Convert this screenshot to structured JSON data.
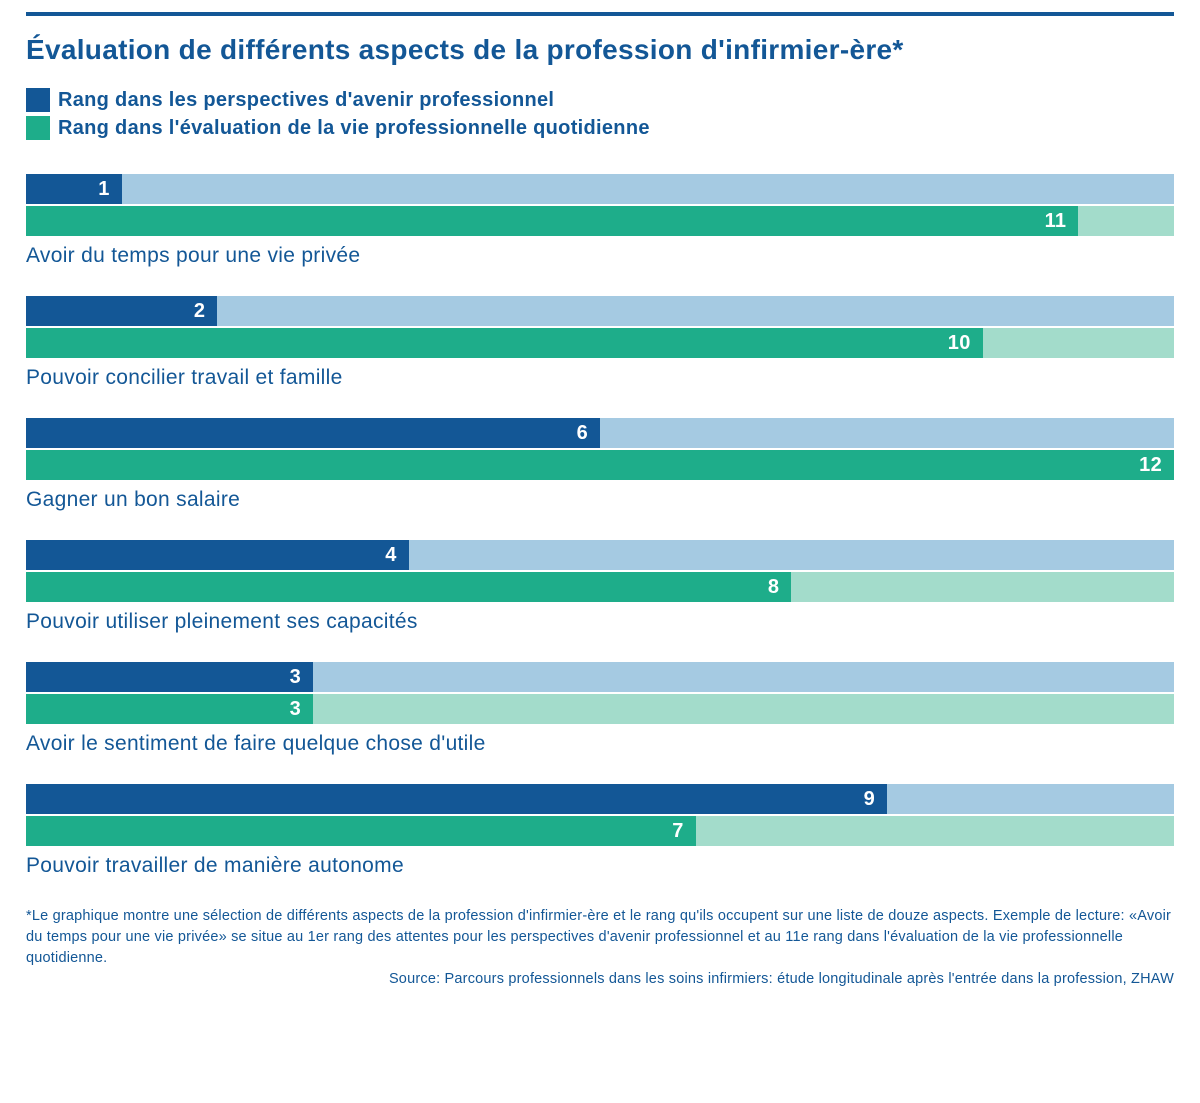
{
  "title": "Évaluation de différents aspects de la profession d'infirmier-ère*",
  "colors": {
    "series1_dark": "#135796",
    "series1_light": "#a5cae2",
    "series2_dark": "#1ead8a",
    "series2_light": "#a3dccb",
    "text": "#135796",
    "rule": "#135796",
    "background": "#ffffff"
  },
  "legend": {
    "series1": "Rang dans les perspectives d'avenir professionnel",
    "series2": "Rang dans l'évaluation de la vie professionnelle quotidienne"
  },
  "max_rank": 12,
  "items": [
    {
      "label": "Avoir du temps pour une vie privée",
      "rank1": 1,
      "rank2": 11
    },
    {
      "label": "Pouvoir concilier travail et famille",
      "rank1": 2,
      "rank2": 10
    },
    {
      "label": "Gagner un bon salaire",
      "rank1": 6,
      "rank2": 12
    },
    {
      "label": "Pouvoir utiliser pleinement ses capacités",
      "rank1": 4,
      "rank2": 8
    },
    {
      "label": "Avoir le sentiment de faire quelque chose d'utile",
      "rank1": 3,
      "rank2": 3
    },
    {
      "label": "Pouvoir travailler de manière autonome",
      "rank1": 9,
      "rank2": 7
    }
  ],
  "footnote": "*Le graphique montre une sélection de différents aspects de la profession d'infirmier-ère et le rang qu'ils occupent sur une liste de douze aspects. Exemple de lecture: «Avoir du temps pour une vie privée» se situe au 1er rang des attentes pour les perspectives d'avenir professionnel et au 11e rang dans l'évaluation de la vie professionnelle quotidienne.",
  "source": "Source: Parcours professionnels dans les soins infirmiers: étude longitudinale après l'entrée dans la profession, ZHAW"
}
